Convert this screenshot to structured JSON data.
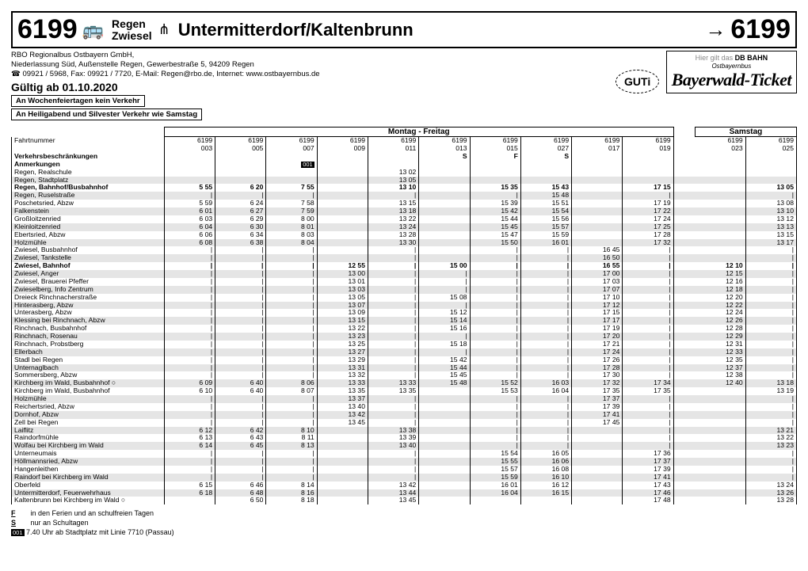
{
  "header": {
    "route": "6199",
    "origin1": "Regen",
    "origin2": "Zwiesel",
    "destination": "Untermitterdorf/Kaltenbrunn",
    "arrow": "→"
  },
  "sub": {
    "line1": "RBO Regionalbus Ostbayern GmbH,",
    "line2": "Niederlassung Süd, Außenstelle Regen, Gewerbestraße 5, 94209 Regen",
    "line3": "☎ 09921 / 5968, Fax: 09921 / 7720, E-Mail: Regen@rbo.de, Internet: www.ostbayernbus.de",
    "valid": "Gültig ab 01.10.2020",
    "notice1": "An Wochenfeiertagen kein Verkehr",
    "notice2": "An Heiligabend und Silvester Verkehr wie Samstag"
  },
  "logos": {
    "guti": "GUTi",
    "db": "DB BAHN",
    "ost": "Ostbayernbus",
    "hier": "Hier gilt das",
    "bayer": "Bayerwald-Ticket"
  },
  "dayhdr": {
    "mf": "Montag - Freitag",
    "sa": "Samstag"
  },
  "labels": {
    "fahrt": "Fahrtnummer",
    "verk": "Verkehrsbeschränkungen",
    "anm": "Anmerkungen"
  },
  "trips": {
    "mf": [
      "6199\n003",
      "6199\n005",
      "6199\n007",
      "6199\n009",
      "6199\n011",
      "6199\n013",
      "6199\n015",
      "6199\n027",
      "6199\n017",
      "6199\n019"
    ],
    "sa": [
      "6199\n023",
      "6199\n025"
    ]
  },
  "restrict": {
    "mf": [
      "",
      "",
      "",
      "",
      "",
      "S",
      "F",
      "S",
      "",
      ""
    ],
    "sa": [
      "",
      ""
    ]
  },
  "remarks": {
    "mf": [
      "",
      "",
      "001",
      "",
      "",
      "",
      "",
      "",
      "",
      ""
    ],
    "sa": [
      "",
      ""
    ]
  },
  "stops": [
    {
      "n": "Regen, Realschule",
      "mf": [
        "",
        "",
        "",
        "",
        "13 02",
        "",
        "",
        "",
        "",
        ""
      ],
      "sa": [
        "",
        ""
      ]
    },
    {
      "n": "Regen, Stadtplatz",
      "mf": [
        "",
        "",
        "",
        "",
        "13 05",
        "",
        "",
        "",
        "",
        ""
      ],
      "sa": [
        "",
        ""
      ]
    },
    {
      "n": "Regen, Bahnhof/Busbahnhof",
      "b": 1,
      "mf": [
        "5 55",
        "6 20",
        "7 55",
        "",
        "13 10",
        "",
        "15 35",
        "15 43",
        "",
        "17 15"
      ],
      "sa": [
        "",
        "13 05"
      ]
    },
    {
      "n": "Regen, Ruselstraße",
      "mf": [
        "|",
        "|",
        "|",
        "",
        "|",
        "",
        "|",
        "15 48",
        "",
        "|"
      ],
      "sa": [
        "",
        "|"
      ]
    },
    {
      "n": "Poschetsried, Abzw",
      "mf": [
        "5 59",
        "6 24",
        "7 58",
        "",
        "13 15",
        "",
        "15 39",
        "15 51",
        "",
        "17 19"
      ],
      "sa": [
        "",
        "13 08"
      ]
    },
    {
      "n": "Falkenstein",
      "mf": [
        "6 01",
        "6 27",
        "7 59",
        "",
        "13 18",
        "",
        "15 42",
        "15 54",
        "",
        "17 22"
      ],
      "sa": [
        "",
        "13 10"
      ]
    },
    {
      "n": "Großloitzenried",
      "mf": [
        "6 03",
        "6 29",
        "8 00",
        "",
        "13 22",
        "",
        "15 44",
        "15 56",
        "",
        "17 24"
      ],
      "sa": [
        "",
        "13 12"
      ]
    },
    {
      "n": "Kleinloitzenried",
      "mf": [
        "6 04",
        "6 30",
        "8 01",
        "",
        "13 24",
        "",
        "15 45",
        "15 57",
        "",
        "17 25"
      ],
      "sa": [
        "",
        "13 13"
      ]
    },
    {
      "n": "Ebertsried, Abzw",
      "mf": [
        "6 06",
        "6 34",
        "8 03",
        "",
        "13 28",
        "",
        "15 47",
        "15 59",
        "",
        "17 28"
      ],
      "sa": [
        "",
        "13 15"
      ]
    },
    {
      "n": "Holzmühle",
      "mf": [
        "6 08",
        "6 38",
        "8 04",
        "",
        "13 30",
        "",
        "15 50",
        "16 01",
        "",
        "17 32"
      ],
      "sa": [
        "",
        "13 17"
      ]
    },
    {
      "n": "Zwiesel, Busbahnhof",
      "mf": [
        "|",
        "|",
        "|",
        "",
        "|",
        "",
        "|",
        "|",
        "16 45",
        "|"
      ],
      "sa": [
        "",
        "|"
      ]
    },
    {
      "n": "Zwiesel, Tankstelle",
      "mf": [
        "|",
        "|",
        "|",
        "",
        "|",
        "",
        "|",
        "|",
        "16 50",
        "|"
      ],
      "sa": [
        "",
        "|"
      ]
    },
    {
      "n": "Zwiesel, Bahnhof",
      "b": 1,
      "mf": [
        "|",
        "|",
        "|",
        "12 55",
        "|",
        "15 00",
        "|",
        "|",
        "16 55",
        "|"
      ],
      "sa": [
        "12 10",
        "|"
      ]
    },
    {
      "n": "Zwiesel, Anger",
      "mf": [
        "|",
        "|",
        "|",
        "13 00",
        "|",
        "|",
        "|",
        "|",
        "17 00",
        "|"
      ],
      "sa": [
        "12 15",
        "|"
      ]
    },
    {
      "n": "Zwiesel, Brauerei Pfeffer",
      "mf": [
        "|",
        "|",
        "|",
        "13 01",
        "|",
        "|",
        "|",
        "|",
        "17 03",
        "|"
      ],
      "sa": [
        "12 16",
        "|"
      ]
    },
    {
      "n": "Zwieselberg, Info Zentrum",
      "mf": [
        "|",
        "|",
        "|",
        "13 03",
        "|",
        "|",
        "|",
        "|",
        "17 07",
        "|"
      ],
      "sa": [
        "12 18",
        "|"
      ]
    },
    {
      "n": "Dreieck Rinchnacherstraße",
      "mf": [
        "|",
        "|",
        "|",
        "13 05",
        "|",
        "15 08",
        "|",
        "|",
        "17 10",
        "|"
      ],
      "sa": [
        "12 20",
        "|"
      ]
    },
    {
      "n": "Hinterasberg, Abzw",
      "mf": [
        "|",
        "|",
        "|",
        "13 07",
        "|",
        "|",
        "|",
        "|",
        "17 12",
        "|"
      ],
      "sa": [
        "12 22",
        "|"
      ]
    },
    {
      "n": "Unterasberg, Abzw",
      "mf": [
        "|",
        "|",
        "|",
        "13 09",
        "|",
        "15 12",
        "|",
        "|",
        "17 15",
        "|"
      ],
      "sa": [
        "12 24",
        "|"
      ]
    },
    {
      "n": "Klessing bei Rinchnach, Abzw",
      "mf": [
        "|",
        "|",
        "|",
        "13 15",
        "|",
        "15 14",
        "|",
        "|",
        "17 17",
        "|"
      ],
      "sa": [
        "12 26",
        "|"
      ]
    },
    {
      "n": "Rinchnach, Busbahnhof",
      "mf": [
        "|",
        "|",
        "|",
        "13 22",
        "|",
        "15 16",
        "|",
        "|",
        "17 19",
        "|"
      ],
      "sa": [
        "12 28",
        "|"
      ]
    },
    {
      "n": "Rinchnach, Rosenau",
      "mf": [
        "|",
        "|",
        "|",
        "13 23",
        "|",
        "|",
        "|",
        "|",
        "17 20",
        "|"
      ],
      "sa": [
        "12 29",
        "|"
      ]
    },
    {
      "n": "Rinchnach, Probstberg",
      "mf": [
        "|",
        "|",
        "|",
        "13 25",
        "|",
        "15 18",
        "|",
        "|",
        "17 21",
        "|"
      ],
      "sa": [
        "12 31",
        "|"
      ]
    },
    {
      "n": "Ellerbach",
      "mf": [
        "|",
        "|",
        "|",
        "13 27",
        "|",
        "|",
        "|",
        "|",
        "17 24",
        "|"
      ],
      "sa": [
        "12 33",
        "|"
      ]
    },
    {
      "n": "Stadl bei Regen",
      "mf": [
        "|",
        "|",
        "|",
        "13 29",
        "|",
        "15 42",
        "|",
        "|",
        "17 26",
        "|"
      ],
      "sa": [
        "12 35",
        "|"
      ]
    },
    {
      "n": "Unternaglbach",
      "mf": [
        "|",
        "|",
        "|",
        "13 31",
        "|",
        "15 44",
        "|",
        "|",
        "17 28",
        "|"
      ],
      "sa": [
        "12 37",
        "|"
      ]
    },
    {
      "n": "Sommersberg, Abzw",
      "mf": [
        "|",
        "|",
        "|",
        "13 32",
        "|",
        "15 45",
        "|",
        "|",
        "17 30",
        "|"
      ],
      "sa": [
        "12 38",
        "|"
      ]
    },
    {
      "n": "Kirchberg im Wald, Busbahnhof  ○",
      "mf": [
        "6 09",
        "6 40",
        "8 06",
        "13 33",
        "13 33",
        "15 48",
        "15 52",
        "16 03",
        "17 32",
        "17 34"
      ],
      "sa": [
        "12 40",
        "13 18"
      ]
    },
    {
      "n": "Kirchberg im Wald, Busbahnhof",
      "mf": [
        "6 10",
        "6 40",
        "8 07",
        "13 35",
        "13 35",
        "",
        "15 53",
        "16 04",
        "17 35",
        "17 35"
      ],
      "sa": [
        "",
        "13 19"
      ]
    },
    {
      "n": "Holzmühle",
      "mf": [
        "|",
        "|",
        "|",
        "13 37",
        "|",
        "",
        "|",
        "|",
        "17 37",
        "|"
      ],
      "sa": [
        "",
        "|"
      ]
    },
    {
      "n": "Reichertsried, Abzw",
      "mf": [
        "|",
        "|",
        "|",
        "13 40",
        "|",
        "",
        "|",
        "|",
        "17 39",
        "|"
      ],
      "sa": [
        "",
        "|"
      ]
    },
    {
      "n": "Dornhof, Abzw",
      "mf": [
        "|",
        "|",
        "|",
        "13 42",
        "|",
        "",
        "|",
        "|",
        "17 41",
        "|"
      ],
      "sa": [
        "",
        "|"
      ]
    },
    {
      "n": "Zell bei Regen",
      "mf": [
        "|",
        "|",
        "|",
        "13 45",
        "|",
        "",
        "|",
        "|",
        "17 45",
        "|"
      ],
      "sa": [
        "",
        "|"
      ]
    },
    {
      "n": "Laiflitz",
      "mf": [
        "6 12",
        "6 42",
        "8 10",
        "",
        "13 38",
        "",
        "|",
        "|",
        "",
        "|"
      ],
      "sa": [
        "",
        "13 21"
      ]
    },
    {
      "n": "Raindorfmühle",
      "mf": [
        "6 13",
        "6 43",
        "8 11",
        "",
        "13 39",
        "",
        "|",
        "|",
        "",
        "|"
      ],
      "sa": [
        "",
        "13 22"
      ]
    },
    {
      "n": "Wolfau bei Kirchberg im Wald",
      "mf": [
        "6 14",
        "6 45",
        "8 13",
        "",
        "13 40",
        "",
        "|",
        "|",
        "",
        "|"
      ],
      "sa": [
        "",
        "13 23"
      ]
    },
    {
      "n": "Unterneumais",
      "mf": [
        "|",
        "|",
        "|",
        "",
        "|",
        "",
        "15 54",
        "16 05",
        "",
        "17 36"
      ],
      "sa": [
        "",
        "|"
      ]
    },
    {
      "n": "Höllmannsried, Abzw",
      "mf": [
        "|",
        "|",
        "|",
        "",
        "|",
        "",
        "15 55",
        "16 06",
        "",
        "17 37"
      ],
      "sa": [
        "",
        "|"
      ]
    },
    {
      "n": "Hangenleithen",
      "mf": [
        "|",
        "|",
        "|",
        "",
        "|",
        "",
        "15 57",
        "16 08",
        "",
        "17 39"
      ],
      "sa": [
        "",
        "|"
      ]
    },
    {
      "n": "Raindorf bei Kirchberg im Wald",
      "mf": [
        "|",
        "|",
        "|",
        "",
        "|",
        "",
        "15 59",
        "16 10",
        "",
        "17 41"
      ],
      "sa": [
        "",
        "|"
      ]
    },
    {
      "n": "Oberfeld",
      "mf": [
        "6 15",
        "6 46",
        "8 14",
        "",
        "13 42",
        "",
        "16 01",
        "16 12",
        "",
        "17 43"
      ],
      "sa": [
        "",
        "13 24"
      ]
    },
    {
      "n": "Untermitterdorf, Feuerwehrhaus",
      "mf": [
        "6 18",
        "6 48",
        "8 16",
        "",
        "13 44",
        "",
        "16 04",
        "16 15",
        "",
        "17 46"
      ],
      "sa": [
        "",
        "13 26"
      ]
    },
    {
      "n": "Kaltenbrunn bei Kirchberg im Wald  ○",
      "mf": [
        "",
        "6 50",
        "8 18",
        "",
        "13 45",
        "",
        "",
        "",
        "",
        "17 48"
      ],
      "sa": [
        "",
        "13 28"
      ]
    }
  ],
  "foot": {
    "f": "in den Ferien und an schulfreien Tagen",
    "s": "nur an Schultagen",
    "a001": "7.40 Uhr ab Stadtplatz mit Linie 7710 (Passau)"
  }
}
